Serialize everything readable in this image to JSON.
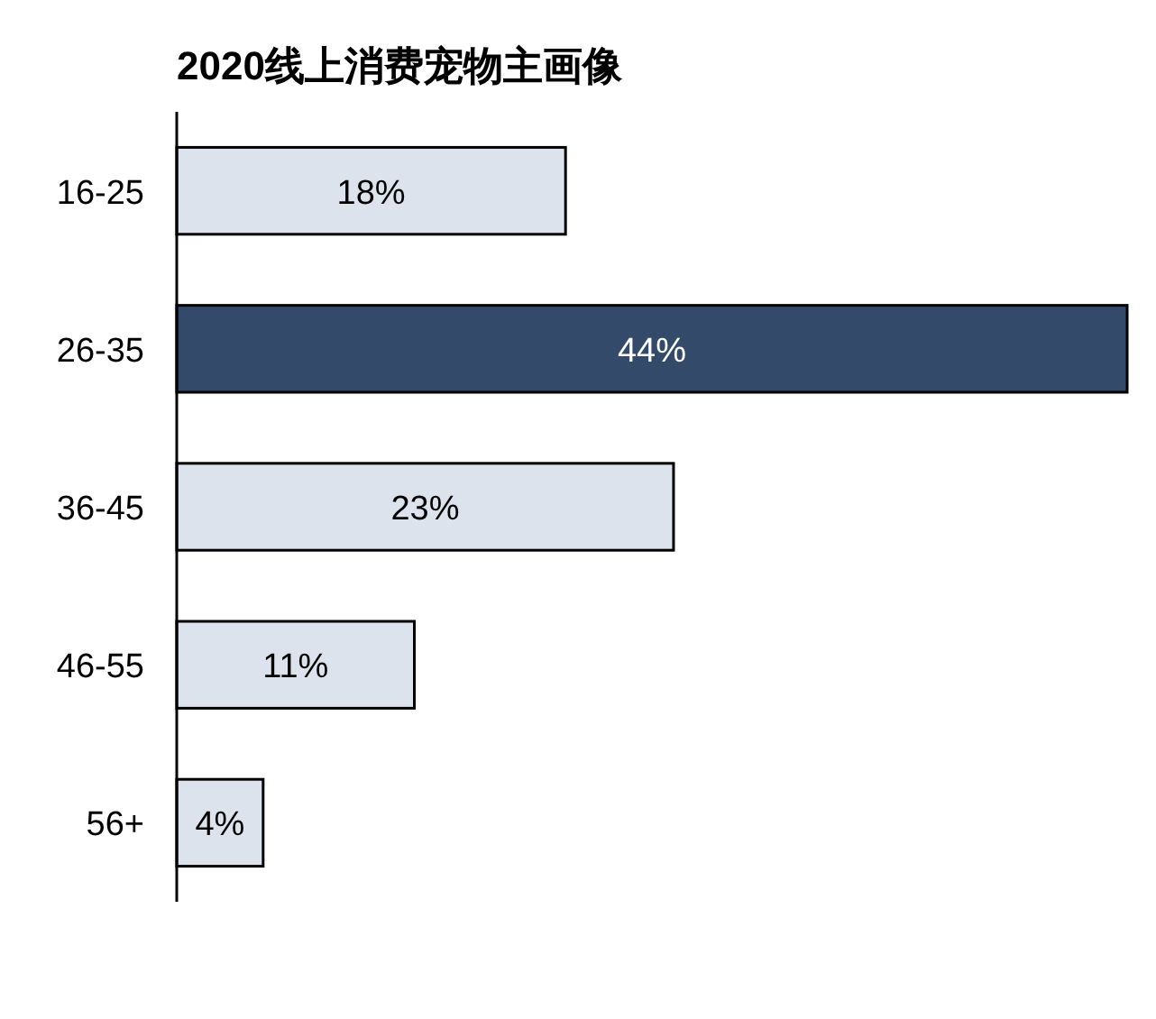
{
  "chart_data": {
    "type": "bar",
    "orientation": "horizontal",
    "title": "2020线上消费宠物主画像",
    "categories": [
      "16-25",
      "26-35",
      "36-45",
      "46-55",
      "56+"
    ],
    "values": [
      18,
      44,
      23,
      11,
      4
    ],
    "colors": [
      "#dde3ec",
      "#344a6b",
      "#dde3ec",
      "#dde3ec",
      "#dde3ec"
    ],
    "value_labels": [
      "18%",
      "44%",
      "23%",
      "11%",
      "4%"
    ]
  }
}
